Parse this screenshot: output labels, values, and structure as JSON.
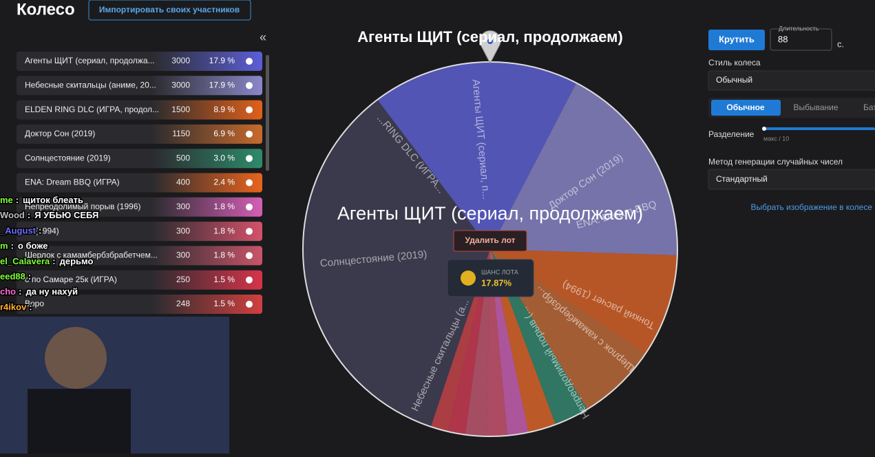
{
  "header": {
    "title": "Колесо",
    "import_button": "Импортировать своих участников",
    "collapse": "«"
  },
  "lots": [
    {
      "name": "Агенты ЩИТ (сериал, продолжа...",
      "amount": 3000,
      "percent": 17.9,
      "percent_label": "17.9 %",
      "color": "#5b5fd6"
    },
    {
      "name": "Небесные скитальцы (аниме, 20...",
      "amount": 3000,
      "percent": 17.9,
      "percent_label": "17.9 %",
      "color": "#8b87c9"
    },
    {
      "name": "ELDEN RING DLC (ИГРА, продол...",
      "amount": 1500,
      "percent": 8.9,
      "percent_label": "8.9 %",
      "color": "#e0601a"
    },
    {
      "name": "Доктор Сон (2019)",
      "amount": 1150,
      "percent": 6.9,
      "percent_label": "6.9 %",
      "color": "#c76a2c"
    },
    {
      "name": "Солнцестояние (2019)",
      "amount": 500,
      "percent": 3.0,
      "percent_label": "3.0 %",
      "color": "#2e8b6a"
    },
    {
      "name": "ENA: Dream BBQ (ИГРА)",
      "amount": 400,
      "percent": 2.4,
      "percent_label": "2.4 %",
      "color": "#e8641e"
    },
    {
      "name": "Непреодолимый порыв (1996)",
      "amount": 300,
      "percent": 1.8,
      "percent_label": "1.8 %",
      "color": "#d45fb5"
    },
    {
      "name": "ет (1994)",
      "amount": 300,
      "percent": 1.8,
      "percent_label": "1.8 %",
      "color": "#d4526a"
    },
    {
      "name": "Шерлок с камамбербзбрабетчем...",
      "amount": 300,
      "percent": 1.8,
      "percent_label": "1.8 %",
      "color": "#c9546a"
    },
    {
      "name": "о по Самаре 25к (ИГРА)",
      "amount": 250,
      "percent": 1.5,
      "percent_label": "1.5 %",
      "color": "#d6344a"
    },
    {
      "name": "Воро",
      "amount": 248,
      "percent": 1.5,
      "percent_label": "1.5 %",
      "color": "#d04040"
    }
  ],
  "wheel": {
    "title": "Агенты ЩИТ (сериал, продолжаем)",
    "current_lot": "Агенты ЩИТ (сериал, продолжаем)",
    "delete_button": "Удалить лот",
    "chance_label": "ШАНС ЛОТА",
    "chance": "17.87%",
    "labels": [
      "Агенты ЩИТ (сериал, п...",
      "...RING DLC (ИГРА...",
      "Доктор Сон (2019)",
      "ENA: Dream BBQ",
      "Солнцестояние (2019)",
      "Тонкий расчет (1994)",
      "Шерлок с камамбербзбр...",
      "Непреодолимый порыв (...",
      "Небесные скитальцы (а..."
    ]
  },
  "settings": {
    "spin_button": "Крутить",
    "duration_label": "Длительность",
    "duration": 88,
    "duration_unit": "с.",
    "style_label": "Стиль колеса",
    "style_value": "Обычный",
    "tabs": [
      "Обычное",
      "Выбывание",
      "Бат"
    ],
    "split_label": "Разделение",
    "split_hint": "макс / 10",
    "rng_label": "Метод генерации случайных чисел",
    "rng_value": "Стандартный",
    "image_link": "Выбрать изображение в колесе"
  },
  "chat": [
    {
      "user": "me",
      "message": "щиток блеать",
      "color": "#7fff3a"
    },
    {
      "user": "Wood",
      "message": "Я УБЬЮ СЕБЯ",
      "color": "#bdbdbd"
    },
    {
      "user": "_August",
      "color": "#6f6fff"
    },
    {
      "user": "m",
      "message": "о боже",
      "color": "#7fff3a"
    },
    {
      "user": "el_Calavera",
      "message": "дерьмо",
      "color": "#7fff3a"
    },
    {
      "user": "eed88",
      "color": "#7fff3a"
    },
    {
      "user": "cho",
      "message": "да ну нахуй",
      "color": "#ff6bd6"
    },
    {
      "user": "r4ikov",
      "color": "#ffb13a"
    }
  ]
}
